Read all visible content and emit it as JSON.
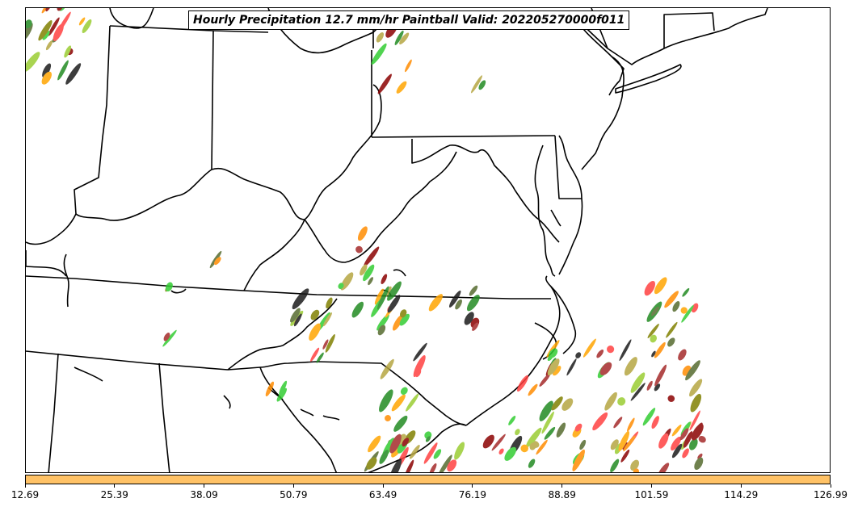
{
  "title": "Hourly Precipitation 12.7 mm/hr Paintball Valid: 202205270000f011",
  "colors": {
    "colorbar_fill": "#ffc266",
    "boundary_line": "#000000",
    "paint_palette": [
      "#228b22",
      "#32cd32",
      "#ff4040",
      "#a52a2a",
      "#8b0000",
      "#808000",
      "#b5a642",
      "#ff8c00",
      "#ffa500",
      "#1a1a1a",
      "#9acd32",
      "#556b2f"
    ]
  },
  "colorbar": {
    "tick_labels": [
      "12.69",
      "25.39",
      "38.09",
      "50.79",
      "63.49",
      "76.19",
      "88.89",
      "101.59",
      "114.29",
      "126.99"
    ],
    "range": [
      12.69,
      126.99
    ]
  },
  "map": {
    "region": "Mid-Atlantic and Southeastern United States",
    "features": [
      "state-boundaries",
      "coastlines",
      "lakes",
      "precipitation-paintballs"
    ]
  }
}
